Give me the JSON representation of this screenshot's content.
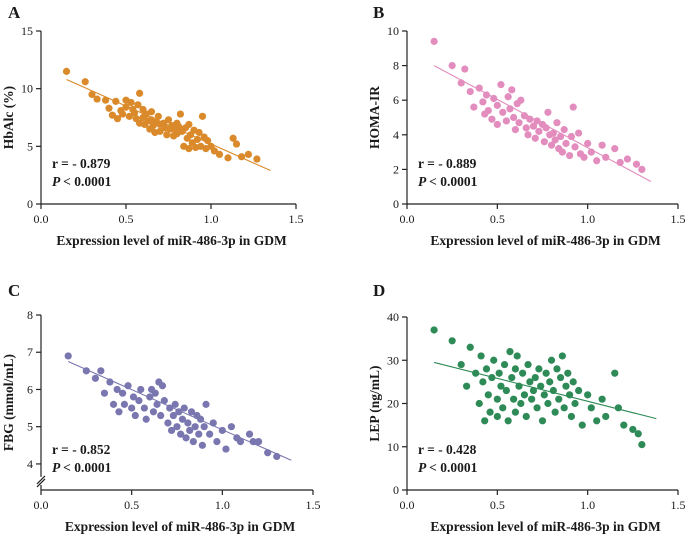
{
  "figure": {
    "x_axis_label": "Expression level of miR-486-3p in GDM",
    "x_ticks": [
      "0.0",
      "0.5",
      "1.0",
      "1.5"
    ]
  },
  "chart_data": [
    {
      "panel": "A",
      "type": "scatter",
      "ylabel": "HbAlc (%)",
      "xlabel": "Expression level of miR-486-3p in GDM",
      "xlim": [
        0,
        1.5
      ],
      "ylim": [
        0,
        15
      ],
      "yticks": [
        0,
        5,
        10,
        15
      ],
      "ytick_labels": [
        "0",
        "5",
        "10",
        "15"
      ],
      "y_break": false,
      "color": "#DA8A2B",
      "r_label": "r = - 0.879",
      "p_label": "< 0.0001",
      "p_symbol": "P",
      "regression": {
        "x1": 0.15,
        "y1": 10.8,
        "x2": 1.35,
        "y2": 2.9
      },
      "points": [
        [
          0.15,
          11.5
        ],
        [
          0.26,
          10.6
        ],
        [
          0.3,
          9.5
        ],
        [
          0.33,
          9.1
        ],
        [
          0.38,
          9.0
        ],
        [
          0.4,
          8.3
        ],
        [
          0.42,
          7.7
        ],
        [
          0.44,
          8.9
        ],
        [
          0.45,
          7.4
        ],
        [
          0.47,
          8.1
        ],
        [
          0.48,
          7.8
        ],
        [
          0.5,
          9.0
        ],
        [
          0.5,
          8.4
        ],
        [
          0.52,
          7.6
        ],
        [
          0.53,
          8.8
        ],
        [
          0.54,
          8.2
        ],
        [
          0.55,
          7.9
        ],
        [
          0.56,
          7.4
        ],
        [
          0.57,
          8.6
        ],
        [
          0.58,
          7.0
        ],
        [
          0.58,
          9.6
        ],
        [
          0.6,
          8.2
        ],
        [
          0.6,
          7.5
        ],
        [
          0.61,
          6.9
        ],
        [
          0.62,
          7.8
        ],
        [
          0.63,
          7.2
        ],
        [
          0.64,
          6.5
        ],
        [
          0.65,
          8.0
        ],
        [
          0.65,
          7.3
        ],
        [
          0.66,
          6.8
        ],
        [
          0.67,
          6.2
        ],
        [
          0.68,
          7.1
        ],
        [
          0.69,
          7.6
        ],
        [
          0.7,
          6.9
        ],
        [
          0.7,
          6.3
        ],
        [
          0.72,
          7.0
        ],
        [
          0.73,
          6.6
        ],
        [
          0.74,
          6.0
        ],
        [
          0.75,
          7.3
        ],
        [
          0.76,
          6.5
        ],
        [
          0.77,
          6.8
        ],
        [
          0.78,
          5.9
        ],
        [
          0.79,
          6.4
        ],
        [
          0.8,
          7.0
        ],
        [
          0.8,
          6.1
        ],
        [
          0.81,
          6.7
        ],
        [
          0.82,
          7.8
        ],
        [
          0.83,
          6.3
        ],
        [
          0.84,
          5.0
        ],
        [
          0.85,
          6.6
        ],
        [
          0.86,
          5.7
        ],
        [
          0.87,
          4.8
        ],
        [
          0.87,
          6.9
        ],
        [
          0.88,
          6.0
        ],
        [
          0.89,
          5.3
        ],
        [
          0.9,
          6.4
        ],
        [
          0.91,
          4.9
        ],
        [
          0.92,
          5.6
        ],
        [
          0.93,
          6.2
        ],
        [
          0.94,
          5.0
        ],
        [
          0.95,
          7.6
        ],
        [
          0.96,
          5.8
        ],
        [
          0.97,
          4.8
        ],
        [
          0.98,
          5.5
        ],
        [
          1.0,
          5.0
        ],
        [
          1.02,
          4.6
        ],
        [
          1.05,
          4.3
        ],
        [
          1.1,
          4.0
        ],
        [
          1.13,
          5.7
        ],
        [
          1.15,
          5.2
        ],
        [
          1.18,
          4.1
        ],
        [
          1.22,
          4.3
        ],
        [
          1.27,
          3.9
        ]
      ]
    },
    {
      "panel": "B",
      "type": "scatter",
      "ylabel": "HOMA-IR",
      "xlabel": "Expression level of miR-486-3p in GDM",
      "xlim": [
        0,
        1.5
      ],
      "ylim": [
        0,
        10
      ],
      "yticks": [
        0,
        2,
        4,
        6,
        8,
        10
      ],
      "ytick_labels": [
        "0",
        "2",
        "4",
        "6",
        "8",
        "10"
      ],
      "y_break": false,
      "color": "#E38DBE",
      "r_label": "r = - 0.889",
      "p_label": "< 0.0001",
      "p_symbol": "P",
      "regression": {
        "x1": 0.15,
        "y1": 8.0,
        "x2": 1.35,
        "y2": 1.3
      },
      "points": [
        [
          0.15,
          9.4
        ],
        [
          0.25,
          8.0
        ],
        [
          0.3,
          7.0
        ],
        [
          0.32,
          7.8
        ],
        [
          0.35,
          6.5
        ],
        [
          0.37,
          5.6
        ],
        [
          0.4,
          6.7
        ],
        [
          0.42,
          5.9
        ],
        [
          0.43,
          5.2
        ],
        [
          0.44,
          6.3
        ],
        [
          0.45,
          5.4
        ],
        [
          0.47,
          4.9
        ],
        [
          0.48,
          6.1
        ],
        [
          0.5,
          5.7
        ],
        [
          0.5,
          4.6
        ],
        [
          0.52,
          6.9
        ],
        [
          0.53,
          5.3
        ],
        [
          0.55,
          4.8
        ],
        [
          0.56,
          6.2
        ],
        [
          0.57,
          5.5
        ],
        [
          0.58,
          6.6
        ],
        [
          0.59,
          5.0
        ],
        [
          0.6,
          4.3
        ],
        [
          0.61,
          5.8
        ],
        [
          0.62,
          4.7
        ],
        [
          0.63,
          6.0
        ],
        [
          0.65,
          5.1
        ],
        [
          0.66,
          4.4
        ],
        [
          0.67,
          4.0
        ],
        [
          0.68,
          4.9
        ],
        [
          0.7,
          4.5
        ],
        [
          0.71,
          3.8
        ],
        [
          0.72,
          4.8
        ],
        [
          0.73,
          4.2
        ],
        [
          0.75,
          4.6
        ],
        [
          0.76,
          3.6
        ],
        [
          0.77,
          4.4
        ],
        [
          0.78,
          5.3
        ],
        [
          0.79,
          4.0
        ],
        [
          0.8,
          3.4
        ],
        [
          0.81,
          4.1
        ],
        [
          0.82,
          3.7
        ],
        [
          0.83,
          4.7
        ],
        [
          0.84,
          3.2
        ],
        [
          0.85,
          3.9
        ],
        [
          0.86,
          3.0
        ],
        [
          0.87,
          4.3
        ],
        [
          0.88,
          3.5
        ],
        [
          0.9,
          2.8
        ],
        [
          0.91,
          3.9
        ],
        [
          0.92,
          5.6
        ],
        [
          0.93,
          3.3
        ],
        [
          0.95,
          4.1
        ],
        [
          0.96,
          2.9
        ],
        [
          0.98,
          2.7
        ],
        [
          1.0,
          3.5
        ],
        [
          1.02,
          3.0
        ],
        [
          1.05,
          2.5
        ],
        [
          1.08,
          3.4
        ],
        [
          1.1,
          2.7
        ],
        [
          1.15,
          3.2
        ],
        [
          1.18,
          2.4
        ],
        [
          1.22,
          2.6
        ],
        [
          1.27,
          2.3
        ],
        [
          1.3,
          2.0
        ]
      ]
    },
    {
      "panel": "C",
      "type": "scatter",
      "ylabel": "FBG (mmol/mL)",
      "xlabel": "Expression level of miR-486-3p in GDM",
      "xlim": [
        0,
        1.5
      ],
      "ylim": [
        3.3,
        8
      ],
      "yticks": [
        4,
        5,
        6,
        7,
        8
      ],
      "ytick_labels": [
        "4",
        "5",
        "6",
        "7",
        "8"
      ],
      "y_break": true,
      "color": "#7A76B0",
      "r_label": "r = - 0.852",
      "p_label": "< 0.0001",
      "p_symbol": "P",
      "regression": {
        "x1": 0.15,
        "y1": 6.75,
        "x2": 1.38,
        "y2": 4.1
      },
      "points": [
        [
          0.15,
          6.9
        ],
        [
          0.25,
          6.5
        ],
        [
          0.3,
          6.3
        ],
        [
          0.33,
          6.5
        ],
        [
          0.35,
          5.9
        ],
        [
          0.38,
          6.2
        ],
        [
          0.4,
          5.6
        ],
        [
          0.42,
          6.0
        ],
        [
          0.43,
          5.4
        ],
        [
          0.45,
          5.9
        ],
        [
          0.46,
          5.6
        ],
        [
          0.48,
          6.1
        ],
        [
          0.5,
          5.5
        ],
        [
          0.51,
          5.8
        ],
        [
          0.52,
          5.3
        ],
        [
          0.54,
          5.7
        ],
        [
          0.55,
          6.0
        ],
        [
          0.57,
          5.5
        ],
        [
          0.58,
          5.2
        ],
        [
          0.6,
          5.8
        ],
        [
          0.61,
          6.0
        ],
        [
          0.62,
          5.4
        ],
        [
          0.63,
          5.9
        ],
        [
          0.64,
          5.6
        ],
        [
          0.65,
          6.2
        ],
        [
          0.66,
          5.3
        ],
        [
          0.67,
          6.1
        ],
        [
          0.68,
          5.7
        ],
        [
          0.7,
          5.1
        ],
        [
          0.71,
          5.5
        ],
        [
          0.72,
          4.9
        ],
        [
          0.73,
          5.3
        ],
        [
          0.74,
          5.6
        ],
        [
          0.75,
          5.0
        ],
        [
          0.76,
          5.4
        ],
        [
          0.77,
          4.8
        ],
        [
          0.78,
          5.2
        ],
        [
          0.79,
          5.5
        ],
        [
          0.8,
          4.7
        ],
        [
          0.81,
          5.1
        ],
        [
          0.82,
          4.9
        ],
        [
          0.83,
          5.4
        ],
        [
          0.84,
          4.6
        ],
        [
          0.85,
          5.0
        ],
        [
          0.86,
          5.3
        ],
        [
          0.87,
          4.8
        ],
        [
          0.88,
          5.2
        ],
        [
          0.89,
          4.5
        ],
        [
          0.9,
          5.0
        ],
        [
          0.91,
          5.6
        ],
        [
          0.93,
          4.8
        ],
        [
          0.95,
          5.1
        ],
        [
          0.97,
          4.6
        ],
        [
          1.0,
          4.9
        ],
        [
          1.02,
          4.4
        ],
        [
          1.05,
          5.0
        ],
        [
          1.08,
          4.7
        ],
        [
          1.1,
          4.6
        ],
        [
          1.15,
          4.8
        ],
        [
          1.17,
          4.6
        ],
        [
          1.2,
          4.6
        ],
        [
          1.25,
          4.3
        ],
        [
          1.3,
          4.2
        ]
      ]
    },
    {
      "panel": "D",
      "type": "scatter",
      "ylabel": "LEP (ng/mL)",
      "xlabel": "Expression level of miR-486-3p in GDM",
      "xlim": [
        0,
        1.5
      ],
      "ylim": [
        0,
        40
      ],
      "yticks": [
        0,
        10,
        20,
        30,
        40
      ],
      "ytick_labels": [
        "0",
        "10",
        "20",
        "30",
        "40"
      ],
      "y_break": false,
      "color": "#2E8B57",
      "r_label": "r = - 0.428",
      "p_label": "< 0.0001",
      "p_symbol": "P",
      "regression": {
        "x1": 0.15,
        "y1": 29.5,
        "x2": 1.38,
        "y2": 16.5
      },
      "points": [
        [
          0.15,
          37
        ],
        [
          0.25,
          34.5
        ],
        [
          0.3,
          29
        ],
        [
          0.33,
          24
        ],
        [
          0.35,
          33
        ],
        [
          0.38,
          27
        ],
        [
          0.4,
          20
        ],
        [
          0.41,
          31
        ],
        [
          0.42,
          25
        ],
        [
          0.43,
          16
        ],
        [
          0.44,
          28
        ],
        [
          0.45,
          22
        ],
        [
          0.46,
          18
        ],
        [
          0.47,
          26
        ],
        [
          0.48,
          30
        ],
        [
          0.5,
          21
        ],
        [
          0.5,
          17
        ],
        [
          0.51,
          27
        ],
        [
          0.52,
          24
        ],
        [
          0.53,
          19
        ],
        [
          0.54,
          29
        ],
        [
          0.55,
          23
        ],
        [
          0.56,
          16
        ],
        [
          0.57,
          32
        ],
        [
          0.58,
          26
        ],
        [
          0.59,
          21
        ],
        [
          0.6,
          28
        ],
        [
          0.6,
          18
        ],
        [
          0.61,
          31
        ],
        [
          0.62,
          24
        ],
        [
          0.63,
          20
        ],
        [
          0.64,
          27
        ],
        [
          0.65,
          22
        ],
        [
          0.66,
          17
        ],
        [
          0.67,
          29
        ],
        [
          0.68,
          25
        ],
        [
          0.69,
          21
        ],
        [
          0.7,
          23
        ],
        [
          0.71,
          26
        ],
        [
          0.72,
          19
        ],
        [
          0.73,
          28
        ],
        [
          0.74,
          24
        ],
        [
          0.75,
          16
        ],
        [
          0.76,
          22
        ],
        [
          0.77,
          27
        ],
        [
          0.78,
          20
        ],
        [
          0.79,
          25
        ],
        [
          0.8,
          30
        ],
        [
          0.81,
          23
        ],
        [
          0.82,
          18
        ],
        [
          0.83,
          28
        ],
        [
          0.84,
          21
        ],
        [
          0.85,
          26
        ],
        [
          0.86,
          31
        ],
        [
          0.87,
          19
        ],
        [
          0.88,
          24
        ],
        [
          0.89,
          27
        ],
        [
          0.9,
          22
        ],
        [
          0.91,
          17
        ],
        [
          0.92,
          25
        ],
        [
          0.93,
          20
        ],
        [
          0.95,
          23
        ],
        [
          0.97,
          15
        ],
        [
          1.0,
          22
        ],
        [
          1.02,
          19
        ],
        [
          1.05,
          16
        ],
        [
          1.08,
          21
        ],
        [
          1.1,
          17
        ],
        [
          1.15,
          27
        ],
        [
          1.17,
          19
        ],
        [
          1.2,
          15
        ],
        [
          1.25,
          14
        ],
        [
          1.28,
          13
        ],
        [
          1.3,
          10.5
        ]
      ]
    }
  ]
}
